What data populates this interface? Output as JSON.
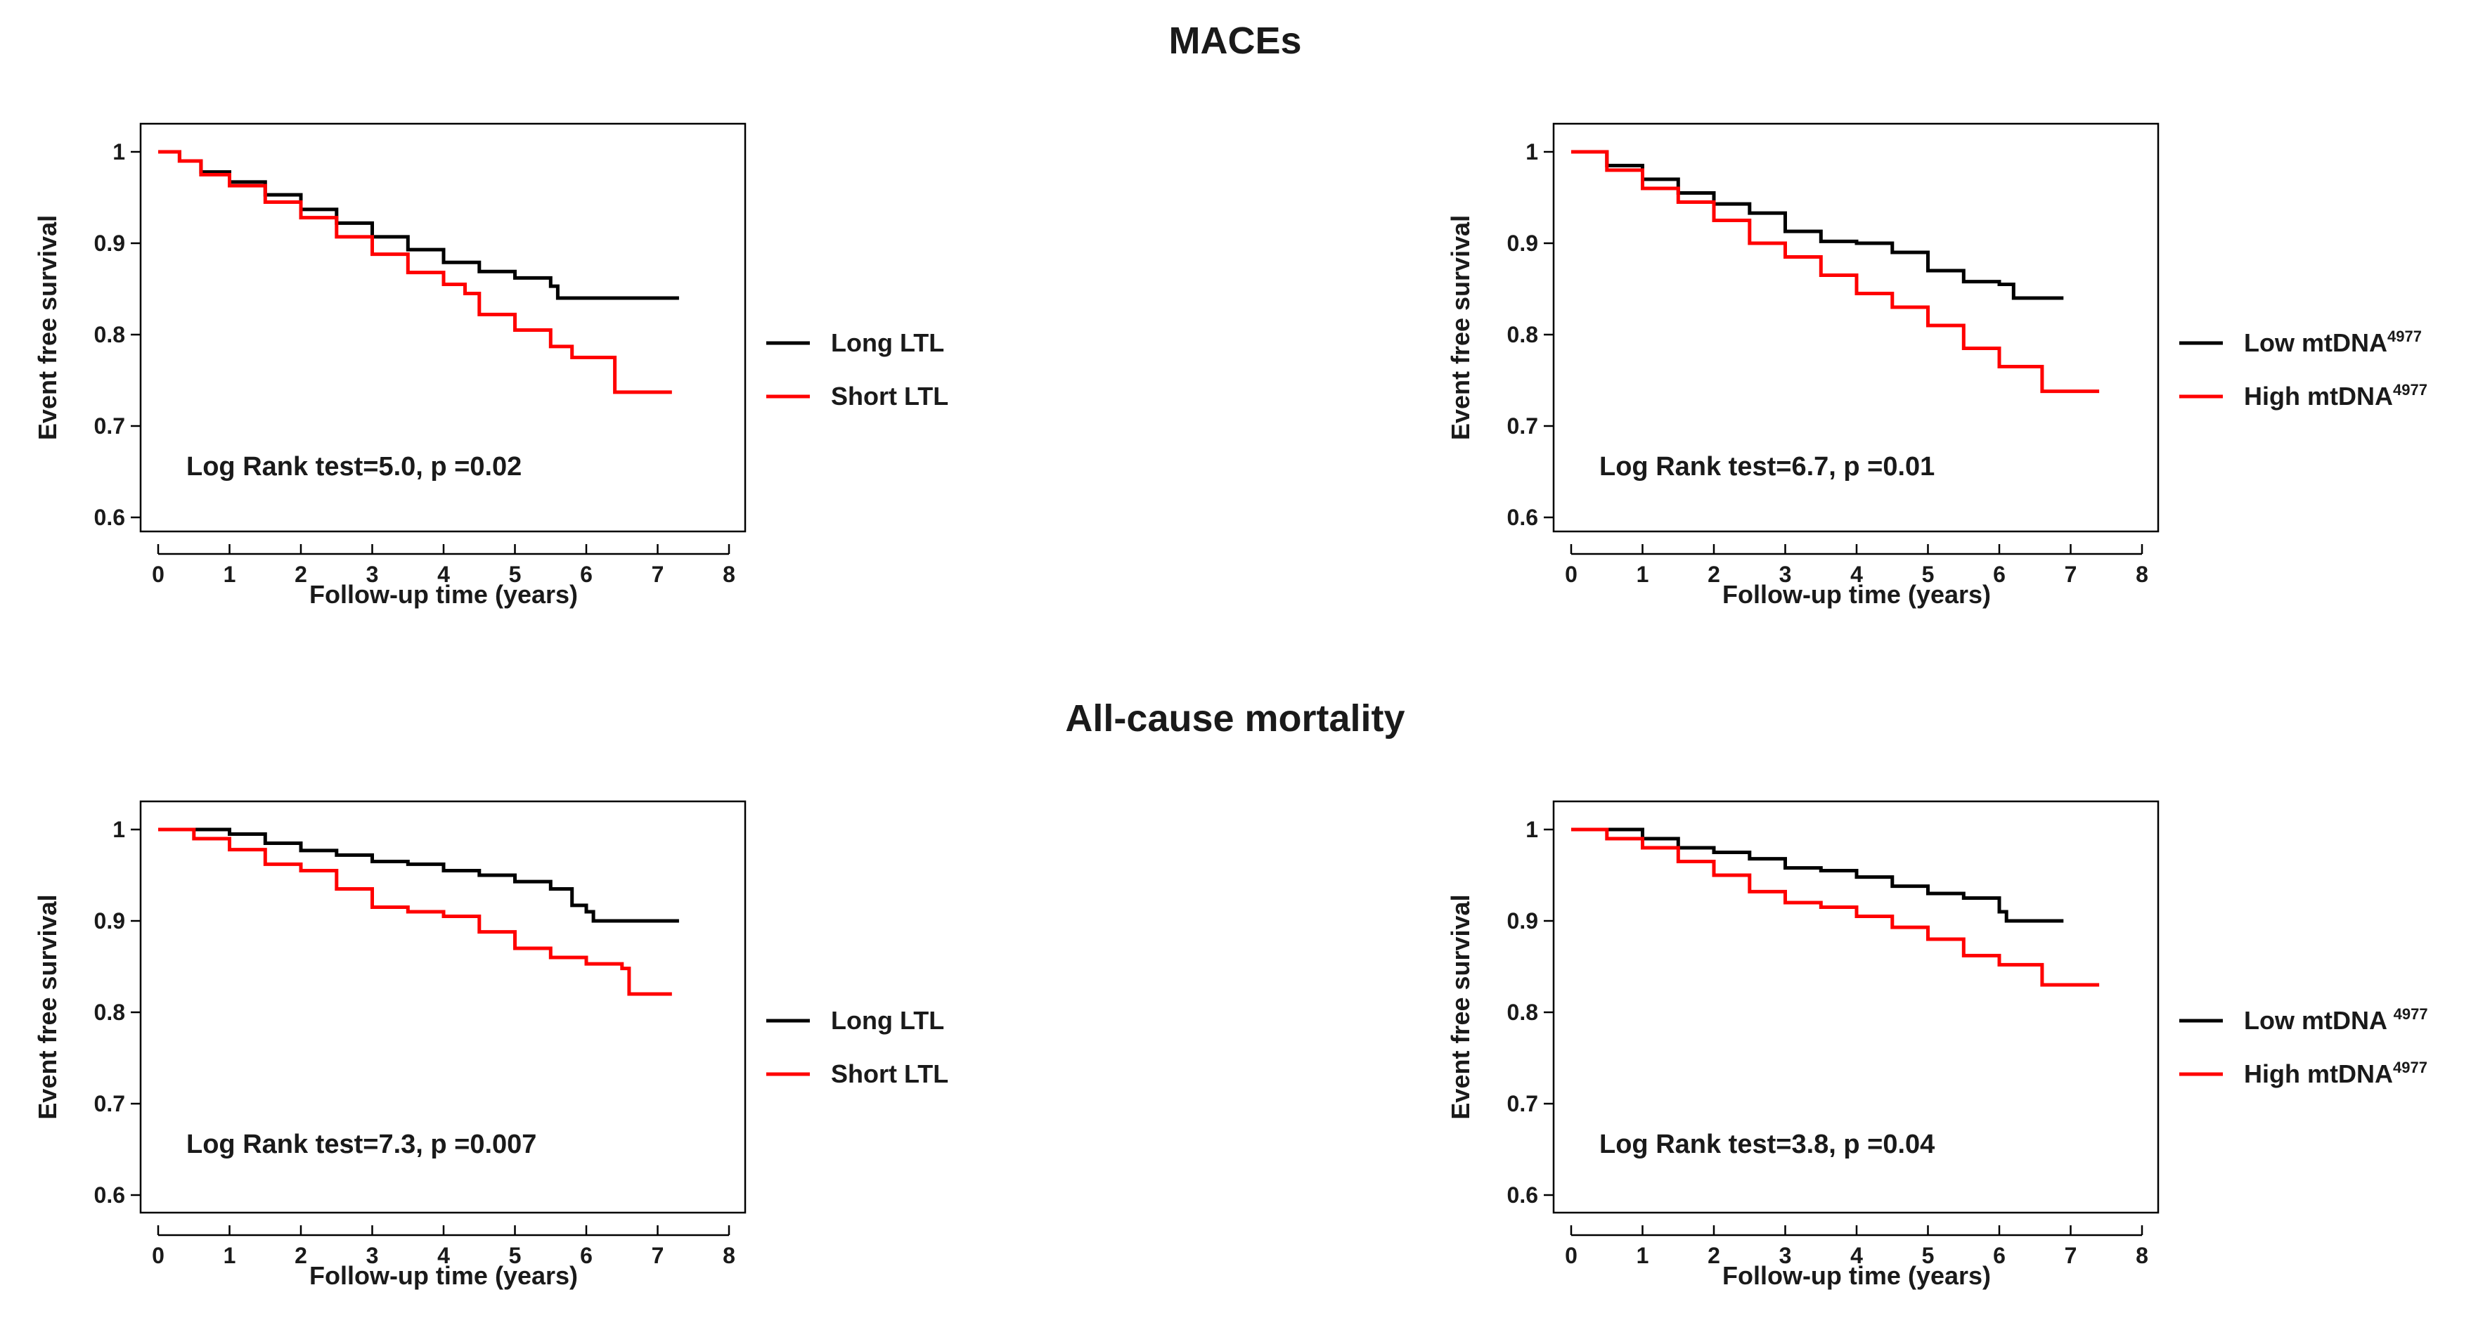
{
  "sections": [
    {
      "title": "MACEs"
    },
    {
      "title": "All-cause mortality"
    }
  ],
  "colors": {
    "black_series": "#000000",
    "red_series": "#ff0000"
  },
  "chart_data": [
    {
      "type": "line",
      "section": "MACEs",
      "xlabel": "Follow-up time (years)",
      "ylabel": "Event free survival",
      "xlim": [
        0,
        8
      ],
      "ylim": [
        0.6,
        1.0
      ],
      "xticks": [
        "0",
        "1",
        "2",
        "3",
        "4",
        "5",
        "6",
        "7",
        "8"
      ],
      "yticks": [
        "0.6",
        "0.7",
        "0.8",
        "0.9",
        "1"
      ],
      "annotation": "Log Rank test=5.0, p =0.02",
      "series": [
        {
          "name": "Long LTL",
          "color": "#000000",
          "x": [
            0,
            0.3,
            0.6,
            1,
            1.5,
            2,
            2.5,
            3,
            3.5,
            4,
            4.5,
            5,
            5.5,
            5.6,
            6,
            6.5,
            7,
            7.3
          ],
          "y": [
            1.0,
            0.99,
            0.978,
            0.967,
            0.953,
            0.937,
            0.922,
            0.907,
            0.893,
            0.879,
            0.869,
            0.862,
            0.853,
            0.84,
            0.84,
            0.84,
            0.84,
            0.84
          ]
        },
        {
          "name": "Short LTL",
          "color": "#ff0000",
          "x": [
            0,
            0.3,
            0.6,
            1,
            1.5,
            2,
            2.5,
            3,
            3.5,
            4,
            4.3,
            4.5,
            5,
            5.5,
            5.8,
            6,
            6.2,
            6.4,
            7,
            7.2
          ],
          "y": [
            1.0,
            0.99,
            0.975,
            0.963,
            0.945,
            0.928,
            0.907,
            0.888,
            0.868,
            0.855,
            0.845,
            0.822,
            0.805,
            0.787,
            0.775,
            0.775,
            0.775,
            0.737,
            0.737,
            0.737
          ]
        }
      ]
    },
    {
      "type": "line",
      "section": "MACEs",
      "xlabel": "Follow-up time (years)",
      "ylabel": "Event free survival",
      "xlim": [
        0,
        8
      ],
      "ylim": [
        0.6,
        1.0
      ],
      "xticks": [
        "0",
        "1",
        "2",
        "3",
        "4",
        "5",
        "6",
        "7",
        "8"
      ],
      "yticks": [
        "0.6",
        "0.7",
        "0.8",
        "0.9",
        "1"
      ],
      "annotation": "Log Rank test=6.7, p =0.01",
      "series": [
        {
          "name": "Low mtDNA",
          "name_sup": "4977",
          "color": "#000000",
          "x": [
            0,
            0.5,
            1,
            1.5,
            2,
            2.5,
            3,
            3.5,
            4,
            4.5,
            5,
            5.5,
            6,
            6.2,
            6.5,
            6.9
          ],
          "y": [
            1.0,
            0.985,
            0.97,
            0.955,
            0.943,
            0.933,
            0.913,
            0.902,
            0.9,
            0.89,
            0.87,
            0.858,
            0.855,
            0.84,
            0.84,
            0.84
          ]
        },
        {
          "name": "High mtDNA",
          "name_sup": "4977",
          "color": "#ff0000",
          "x": [
            0,
            0.5,
            1,
            1.5,
            2,
            2.5,
            3,
            3.5,
            4,
            4.5,
            5,
            5.5,
            6,
            6.3,
            6.6,
            7,
            7.4
          ],
          "y": [
            1.0,
            0.98,
            0.96,
            0.945,
            0.925,
            0.9,
            0.885,
            0.865,
            0.845,
            0.83,
            0.81,
            0.785,
            0.765,
            0.765,
            0.738,
            0.738,
            0.738
          ]
        }
      ]
    },
    {
      "type": "line",
      "section": "All-cause mortality",
      "xlabel": "Follow-up time (years)",
      "ylabel": "Event free survival",
      "xlim": [
        0,
        8
      ],
      "ylim": [
        0.6,
        1.0
      ],
      "xticks": [
        "0",
        "1",
        "2",
        "3",
        "4",
        "5",
        "6",
        "7",
        "8"
      ],
      "yticks": [
        "0.6",
        "0.7",
        "0.8",
        "0.9",
        "1"
      ],
      "annotation": "Log Rank test=7.3, p =0.007",
      "series": [
        {
          "name": "Long LTL",
          "color": "#000000",
          "x": [
            0,
            0.5,
            1,
            1.5,
            2,
            2.5,
            3,
            3.5,
            4,
            4.5,
            5,
            5.5,
            5.8,
            6,
            6.1,
            6.5,
            7,
            7.3
          ],
          "y": [
            1.0,
            1.0,
            0.995,
            0.985,
            0.977,
            0.972,
            0.965,
            0.962,
            0.955,
            0.95,
            0.943,
            0.935,
            0.917,
            0.91,
            0.9,
            0.9,
            0.9,
            0.9
          ]
        },
        {
          "name": "Short LTL",
          "color": "#ff0000",
          "x": [
            0,
            0.5,
            1,
            1.5,
            2,
            2.5,
            3,
            3.5,
            4,
            4.5,
            5,
            5.5,
            6,
            6.5,
            6.6,
            7,
            7.2
          ],
          "y": [
            1.0,
            0.99,
            0.978,
            0.962,
            0.955,
            0.935,
            0.915,
            0.91,
            0.905,
            0.888,
            0.87,
            0.86,
            0.853,
            0.848,
            0.82,
            0.82,
            0.82
          ]
        }
      ]
    },
    {
      "type": "line",
      "section": "All-cause mortality",
      "xlabel": "Follow-up time (years)",
      "ylabel": "Event free survival",
      "xlim": [
        0,
        8
      ],
      "ylim": [
        0.6,
        1.0
      ],
      "xticks": [
        "0",
        "1",
        "2",
        "3",
        "4",
        "5",
        "6",
        "7",
        "8"
      ],
      "yticks": [
        "0.6",
        "0.7",
        "0.8",
        "0.9",
        "1"
      ],
      "annotation": "Log Rank test=3.8, p =0.04",
      "series": [
        {
          "name": "Low mtDNA ",
          "name_sup": "4977",
          "color": "#000000",
          "x": [
            0,
            0.5,
            1,
            1.5,
            2,
            2.5,
            3,
            3.5,
            4,
            4.5,
            5,
            5.5,
            6,
            6.1,
            6.5,
            6.9
          ],
          "y": [
            1.0,
            1.0,
            0.99,
            0.98,
            0.975,
            0.968,
            0.958,
            0.955,
            0.948,
            0.938,
            0.93,
            0.925,
            0.91,
            0.9,
            0.9,
            0.9
          ]
        },
        {
          "name": "High mtDNA",
          "name_sup": "4977",
          "color": "#ff0000",
          "x": [
            0,
            0.5,
            1,
            1.5,
            2,
            2.5,
            3,
            3.5,
            4,
            4.5,
            5,
            5.5,
            6,
            6.3,
            6.6,
            7,
            7.4
          ],
          "y": [
            1.0,
            0.99,
            0.98,
            0.965,
            0.95,
            0.932,
            0.92,
            0.915,
            0.905,
            0.893,
            0.88,
            0.862,
            0.852,
            0.852,
            0.83,
            0.83,
            0.83
          ]
        }
      ]
    }
  ]
}
